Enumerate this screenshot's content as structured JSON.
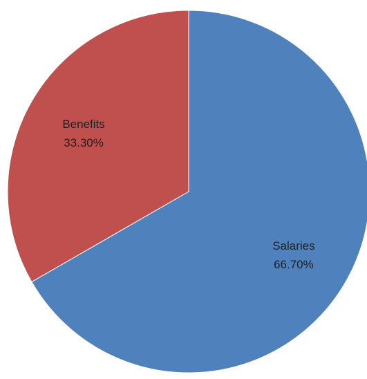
{
  "chart_data": {
    "type": "pie",
    "title": "",
    "start_angle_deg": 0,
    "direction": "clockwise",
    "slices": [
      {
        "label": "Salaries",
        "value": 66.7,
        "value_label": "66.70%",
        "color": "#4F81BD"
      },
      {
        "label": "Benefits",
        "value": 33.3,
        "value_label": "33.30%",
        "color": "#C0504D"
      }
    ]
  }
}
